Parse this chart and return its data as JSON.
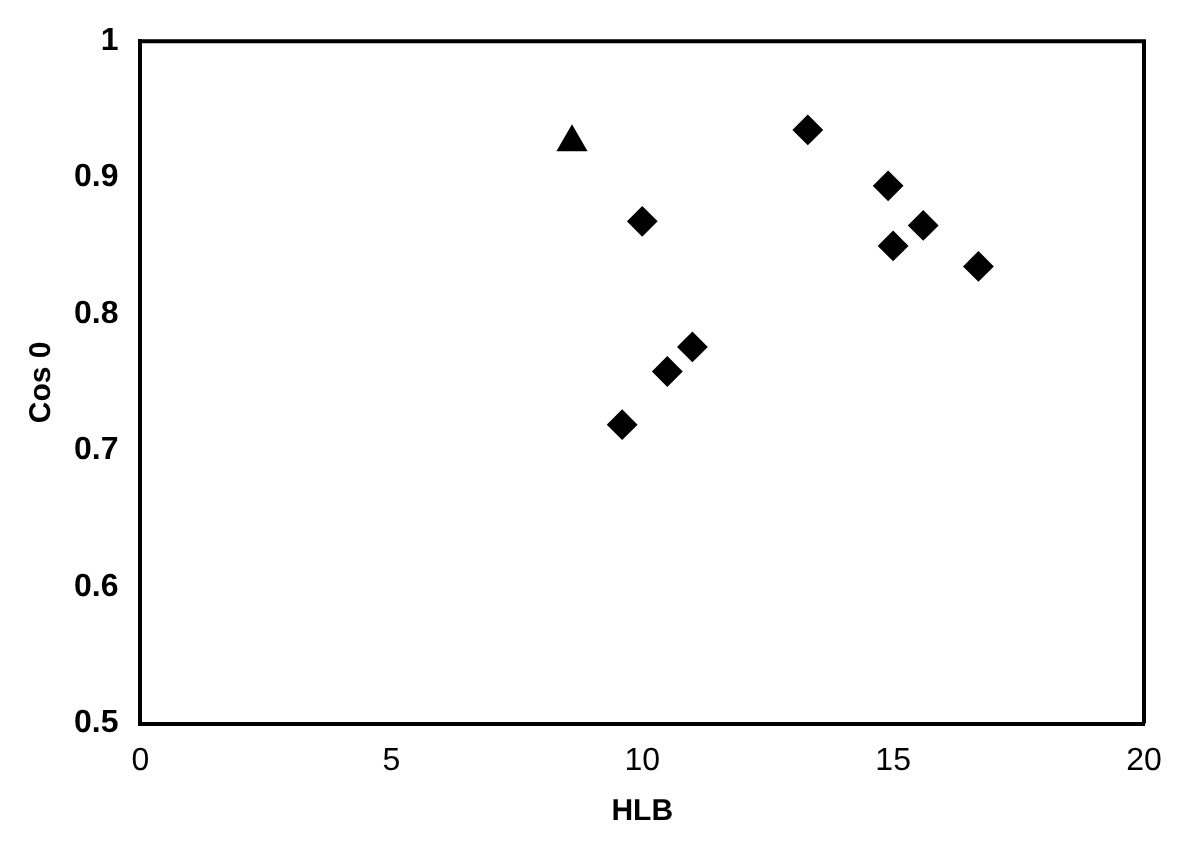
{
  "chart_data": {
    "type": "scatter",
    "xlabel": "HLB",
    "ylabel": "Cos 0",
    "xlim": [
      0,
      20
    ],
    "xticks": [
      0,
      5,
      10,
      15,
      20
    ],
    "ylim": [
      0.5,
      1
    ],
    "yticks": [
      0.5,
      0.6,
      0.7,
      0.8,
      0.9,
      1
    ],
    "grid": false,
    "legend": false,
    "series": [
      {
        "color": "#000000",
        "marker": "triangle",
        "x": [
          8.6
        ],
        "values": [
          0.926
        ]
      },
      {
        "color": "#000000",
        "marker": "diamond",
        "x": [
          13.3,
          10.0,
          14.9,
          15.6,
          15.0,
          16.7,
          11.0,
          10.5,
          9.6
        ],
        "values": [
          0.935,
          0.868,
          0.894,
          0.865,
          0.85,
          0.835,
          0.776,
          0.758,
          0.719
        ]
      }
    ]
  }
}
